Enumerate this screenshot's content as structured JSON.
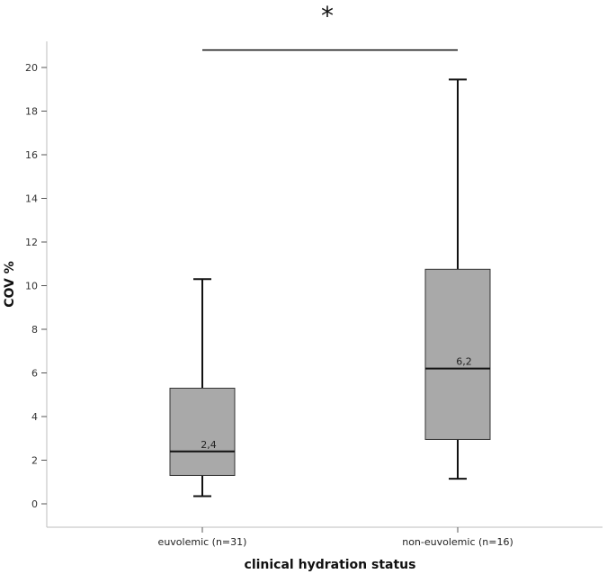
{
  "chart_data": {
    "type": "box",
    "xlabel": "clinical hydration status",
    "ylabel": "COV %",
    "ylim": [
      0,
      21
    ],
    "y_ticks": [
      0,
      2,
      4,
      6,
      8,
      10,
      12,
      14,
      16,
      18,
      20
    ],
    "grid": false,
    "categories": [
      "euvolemic (n=31)",
      "non-euvolemic (n=16)"
    ],
    "boxes": [
      {
        "category": "euvolemic (n=31)",
        "min": 0.35,
        "q1": 1.3,
        "median": 2.4,
        "q3": 5.3,
        "max": 10.3,
        "median_label": "2,4"
      },
      {
        "category": "non-euvolemic (n=16)",
        "min": 1.15,
        "q1": 2.95,
        "median": 6.2,
        "q3": 10.75,
        "max": 19.45,
        "median_label": "6,2"
      }
    ],
    "annotation": {
      "text": "*",
      "value": 20.8,
      "from": 0,
      "to": 1
    },
    "colors": {
      "box_fill": "#a9a9a9",
      "stroke": "#111111",
      "axis": "#bdbdbd"
    }
  }
}
